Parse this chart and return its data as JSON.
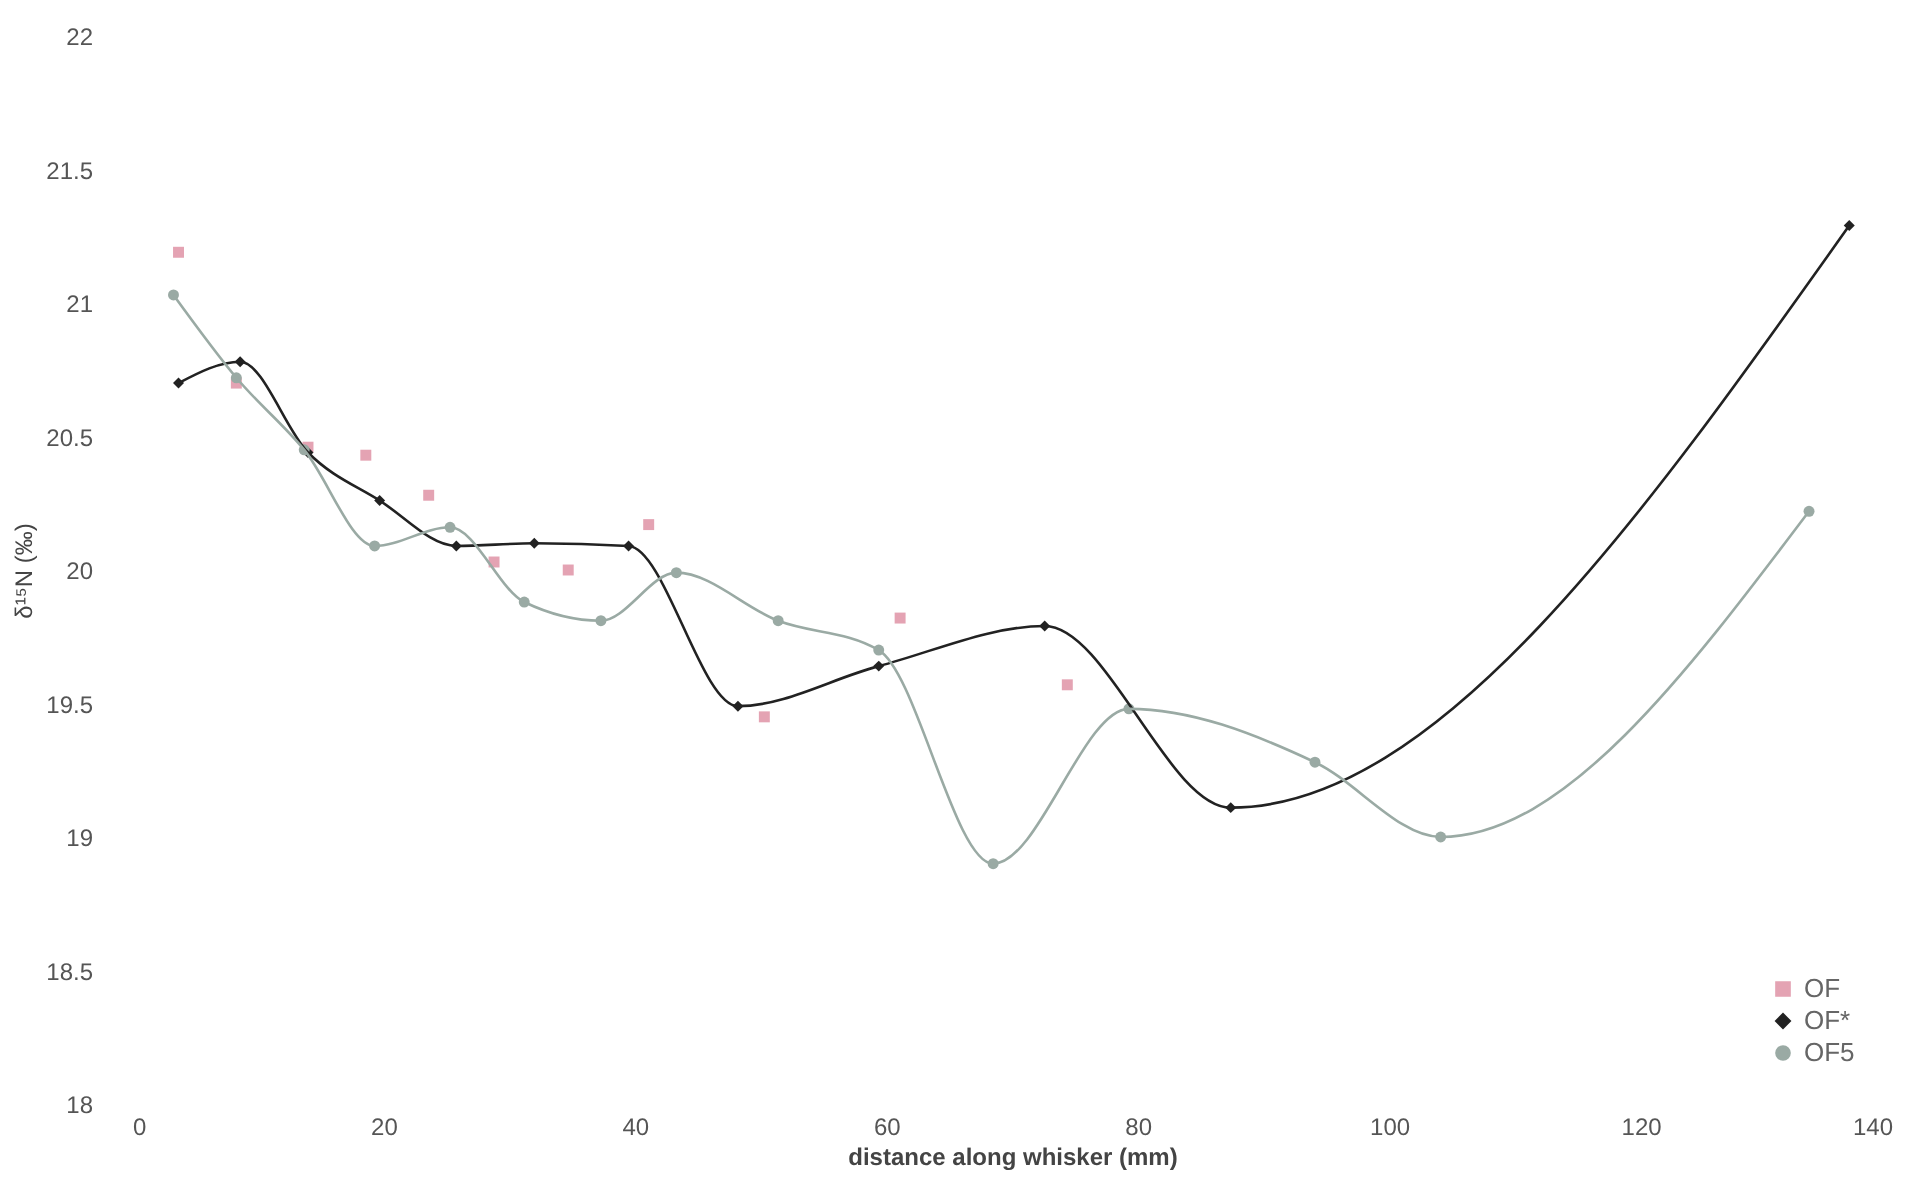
{
  "chart_data": {
    "type": "line",
    "xlabel": "distance along whisker (mm)",
    "ylabel": "δ¹⁵N (‰)",
    "xlim": [
      0,
      140
    ],
    "xticks": [
      0,
      20,
      40,
      60,
      80,
      100,
      120,
      140
    ],
    "ylim": [
      18,
      22
    ],
    "yticks": [
      18,
      18.5,
      19,
      19.5,
      20,
      20.5,
      21,
      21.5,
      22
    ],
    "grid": false,
    "legend": "bottom right",
    "series": [
      {
        "name": "OF",
        "type": "scatter",
        "marker": "square",
        "color": "#e4a3b3",
        "x": [
          3.7,
          8.3,
          14.0,
          18.6,
          23.6,
          28.8,
          34.7,
          41.1,
          50.3,
          61.1,
          74.4
        ],
        "values": [
          21.19,
          20.7,
          20.46,
          20.43,
          20.28,
          20.03,
          20.0,
          20.17,
          19.45,
          19.82,
          19.57
        ]
      },
      {
        "name": "OF*",
        "marker": "diamond",
        "color": "#222222",
        "x": [
          3.7,
          8.6,
          14.0,
          19.7,
          25.8,
          32.0,
          39.5,
          48.2,
          59.4,
          72.6,
          87.4,
          136.6
        ],
        "values": [
          20.7,
          20.78,
          20.44,
          20.26,
          20.09,
          20.1,
          20.09,
          19.49,
          19.64,
          19.79,
          19.11,
          21.29
        ]
      },
      {
        "name": "OF5",
        "marker": "circle",
        "color": "#9aaaa4",
        "x": [
          3.3,
          8.3,
          13.7,
          19.3,
          25.3,
          31.2,
          37.3,
          43.3,
          51.4,
          59.4,
          68.5,
          79.3,
          94.1,
          104.1,
          133.4
        ],
        "values": [
          21.03,
          20.72,
          20.45,
          20.09,
          20.16,
          19.88,
          19.81,
          19.99,
          19.81,
          19.7,
          18.9,
          19.48,
          19.28,
          19.0,
          20.22
        ]
      }
    ]
  }
}
